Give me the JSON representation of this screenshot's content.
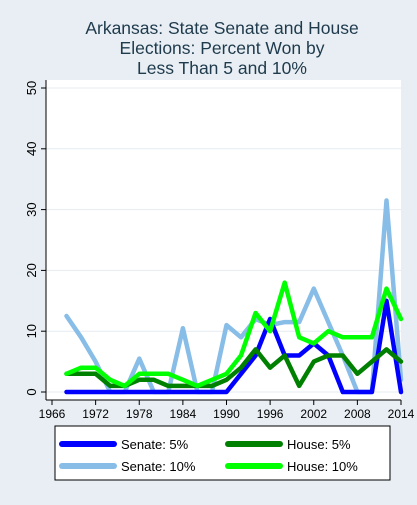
{
  "chart_data": {
    "type": "line",
    "title": [
      "Arkansas: State Senate and House",
      "Elections: Percent Won by",
      "Less Than 5 and 10%"
    ],
    "xlabel": "",
    "ylabel": "",
    "xlim": [
      1966,
      2014
    ],
    "ylim": [
      0,
      50
    ],
    "x_ticks": [
      1966,
      1972,
      1978,
      1984,
      1990,
      1996,
      2002,
      2008,
      2014
    ],
    "y_ticks": [
      0,
      10,
      20,
      30,
      40,
      50
    ],
    "grid": true,
    "legend_position": "bottom",
    "x": [
      1968,
      1970,
      1972,
      1974,
      1976,
      1978,
      1980,
      1982,
      1984,
      1986,
      1988,
      1990,
      1992,
      1994,
      1996,
      1998,
      2000,
      2002,
      2004,
      2006,
      2008,
      2010,
      2012,
      2014
    ],
    "series": [
      {
        "name": "Senate: 5%",
        "color": "#0000ff",
        "values": [
          0,
          0,
          0,
          0,
          0,
          0,
          0,
          0,
          0,
          0,
          0,
          0,
          3,
          6,
          12,
          6,
          6,
          8,
          6,
          0,
          0,
          0,
          15,
          0
        ]
      },
      {
        "name": "Senate: 10%",
        "color": "#87bde6",
        "values": [
          12.5,
          9,
          5,
          0,
          0,
          5.5,
          0,
          0,
          10.5,
          0,
          0,
          11,
          9,
          12,
          11,
          11.5,
          11.5,
          17,
          11.5,
          6,
          0,
          0,
          31.5,
          2
        ]
      },
      {
        "name": "House: 5%",
        "color": "#008000",
        "values": [
          3,
          3,
          3,
          1,
          1,
          2,
          2,
          1,
          1,
          1,
          1,
          2,
          4,
          7,
          4,
          6,
          1,
          5,
          6,
          6,
          3,
          5,
          7,
          5
        ]
      },
      {
        "name": "House: 10%",
        "color": "#00ff00",
        "values": [
          3,
          4,
          4,
          2,
          1,
          3,
          3,
          3,
          2,
          1,
          2,
          3,
          6,
          13,
          10,
          18,
          9,
          8,
          10,
          9,
          9,
          9,
          17,
          12
        ]
      }
    ],
    "legend_order": [
      0,
      2,
      1,
      3
    ]
  }
}
